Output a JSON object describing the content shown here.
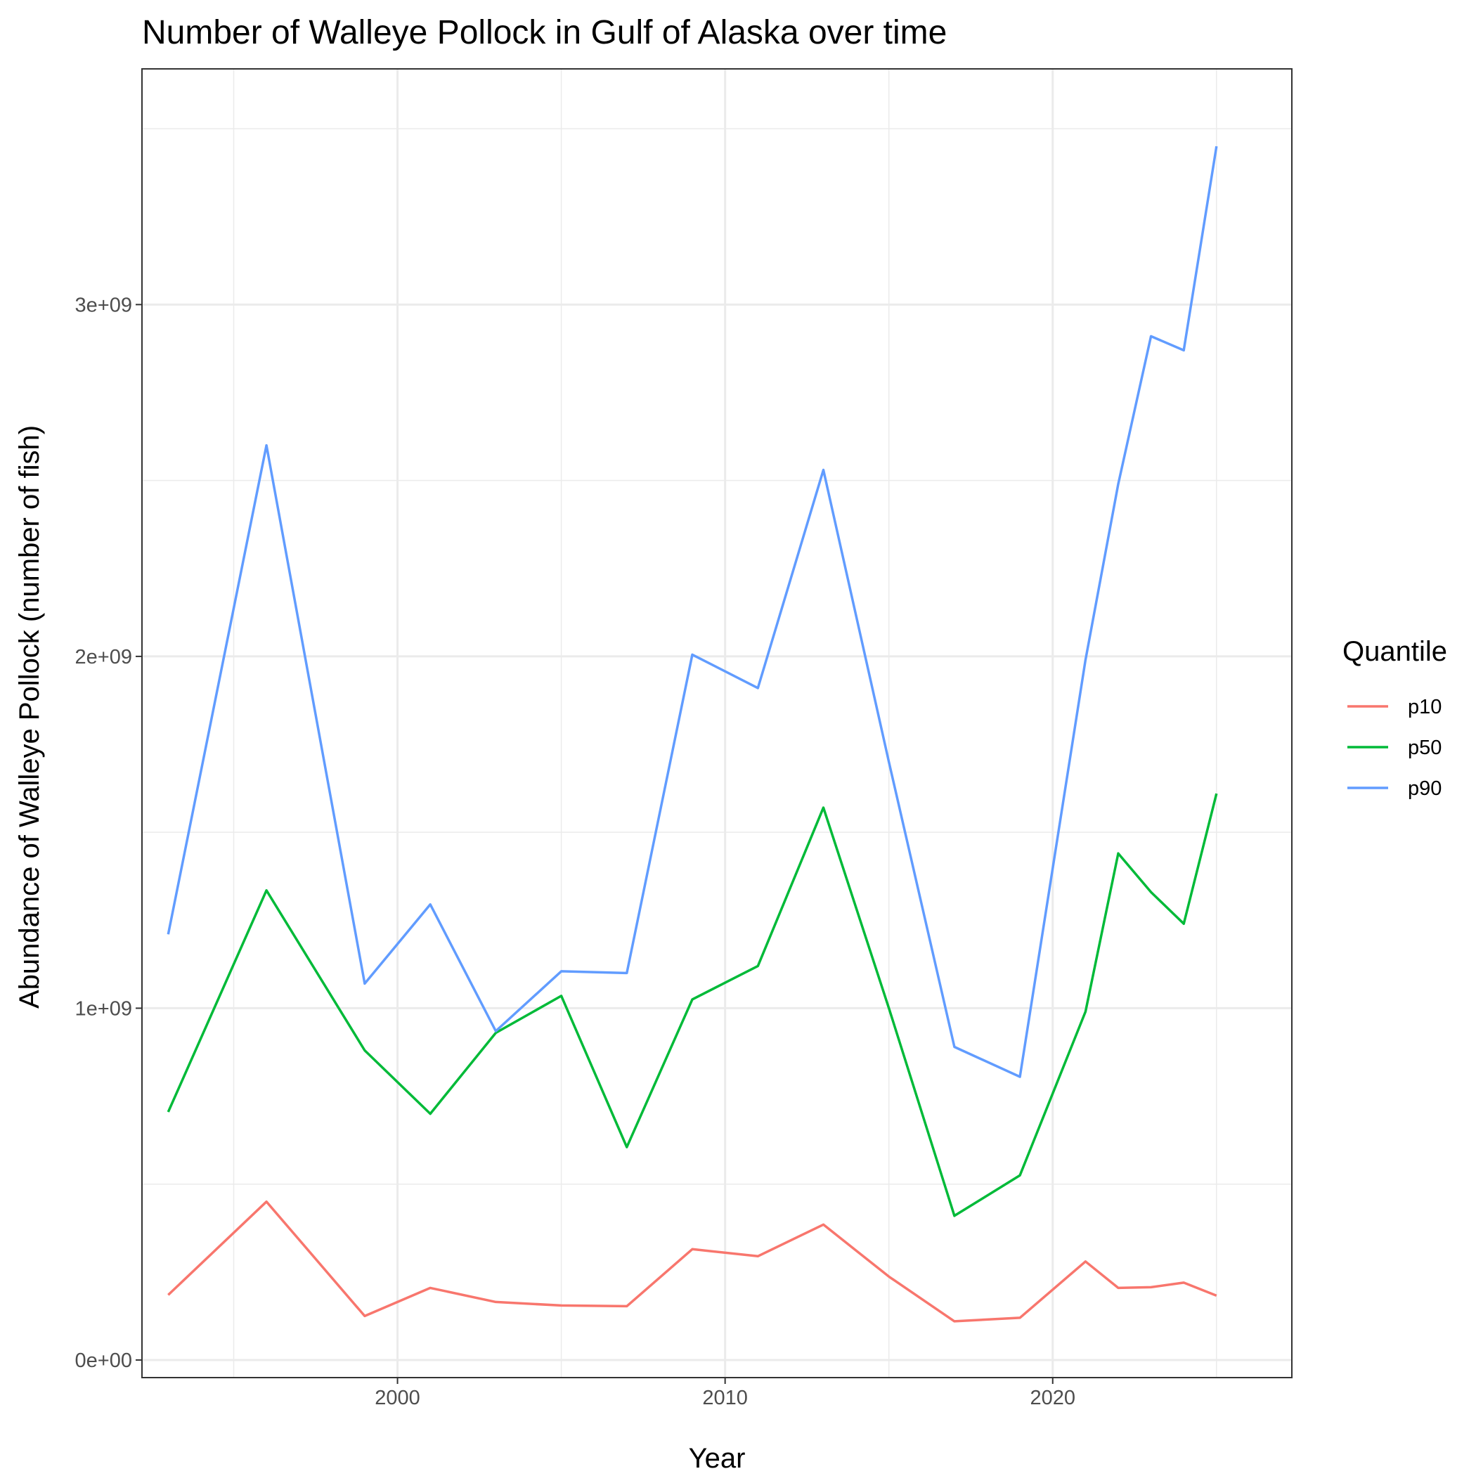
{
  "chart_data": {
    "type": "line",
    "title": "Number of Walleye Pollock in Gulf of Alaska over time",
    "xlabel": "Year",
    "ylabel": "Abundance of Walleye Pollock (number of fish)",
    "xlim": [
      1992.2,
      2027.3
    ],
    "ylim": [
      -50000000,
      3670000000
    ],
    "x_ticks": [
      {
        "value": 2000,
        "label": "2000"
      },
      {
        "value": 2010,
        "label": "2010"
      },
      {
        "value": 2020,
        "label": "2020"
      }
    ],
    "x_minor": [
      1995,
      2005,
      2015,
      2025
    ],
    "y_ticks": [
      {
        "value": 0,
        "label": "0e+00"
      },
      {
        "value": 1000000000,
        "label": "1e+09"
      },
      {
        "value": 2000000000,
        "label": "2e+09"
      },
      {
        "value": 3000000000,
        "label": "3e+09"
      }
    ],
    "y_minor": [
      500000000,
      1500000000,
      2500000000,
      3500000000
    ],
    "grid": true,
    "legend": {
      "title": "Quantile",
      "position": "right"
    },
    "x": [
      1993,
      1996,
      1999,
      2001,
      2003,
      2005,
      2007,
      2009,
      2011,
      2013,
      2015,
      2017,
      2019,
      2021,
      2022,
      2023,
      2024,
      2025
    ],
    "series": [
      {
        "name": "p10",
        "color": "#F8766D",
        "values": [
          185000000,
          450000000,
          125000000,
          205000000,
          165000000,
          155000000,
          153000000,
          315000000,
          295000000,
          385000000,
          237000000,
          110000000,
          120000000,
          280000000,
          205000000,
          207000000,
          220000000,
          183000000
        ]
      },
      {
        "name": "p50",
        "color": "#00BA38",
        "values": [
          705000000,
          1335000000,
          880000000,
          700000000,
          930000000,
          1035000000,
          605000000,
          1025000000,
          1120000000,
          1570000000,
          1000000000,
          410000000,
          525000000,
          990000000,
          1440000000,
          1330000000,
          1240000000,
          1610000000
        ]
      },
      {
        "name": "p90",
        "color": "#619CFF",
        "values": [
          1210000000,
          2600000000,
          1070000000,
          1295000000,
          935000000,
          1105000000,
          1100000000,
          2005000000,
          1910000000,
          2530000000,
          1700000000,
          890000000,
          805000000,
          1990000000,
          2490000000,
          2910000000,
          2870000000,
          3450000000
        ]
      }
    ]
  }
}
